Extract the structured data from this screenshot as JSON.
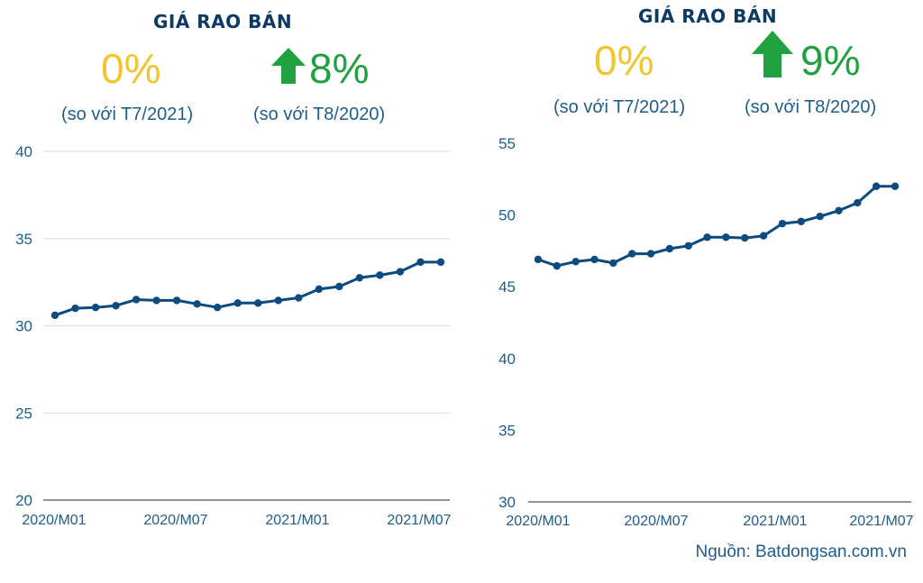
{
  "chart_data": [
    {
      "type": "line",
      "title": "GIÁ RAO BÁN",
      "stats": {
        "mom": {
          "value": "0%",
          "label": "(so với T7/2021)",
          "direction": "flat",
          "color": "#f2c42d"
        },
        "yoy": {
          "value": "8%",
          "label": "(so với T8/2020)",
          "direction": "up",
          "color": "#1fa23f"
        }
      },
      "x": [
        "2020/M01",
        "2020/M02",
        "2020/M03",
        "2020/M04",
        "2020/M05",
        "2020/M06",
        "2020/M07",
        "2020/M08",
        "2020/M09",
        "2020/M10",
        "2020/M11",
        "2020/M12",
        "2021/M01",
        "2021/M02",
        "2021/M03",
        "2021/M04",
        "2021/M05",
        "2021/M06",
        "2021/M07",
        "2021/M08"
      ],
      "values": [
        30.6,
        31.0,
        31.05,
        31.15,
        31.5,
        31.45,
        31.45,
        31.25,
        31.05,
        31.3,
        31.3,
        31.45,
        31.6,
        32.1,
        32.25,
        32.75,
        32.9,
        33.1,
        33.65,
        33.65
      ],
      "xticks": [
        "2020/M01",
        "2020/M07",
        "2021/M01",
        "2021/M07"
      ],
      "ylim": [
        20,
        40
      ],
      "yticks": [
        "20",
        "25",
        "30",
        "35",
        "40"
      ],
      "grid": true,
      "line_color": "#0d4a7e",
      "xlabel": "",
      "ylabel": ""
    },
    {
      "type": "line",
      "title": "GIÁ RAO BÁN",
      "stats": {
        "mom": {
          "value": "0%",
          "label": "(so với T7/2021)",
          "direction": "flat",
          "color": "#f2c42d"
        },
        "yoy": {
          "value": "9%",
          "label": "(so với T8/2020)",
          "direction": "up",
          "color": "#1fa23f"
        }
      },
      "x": [
        "2020/M01",
        "2020/M02",
        "2020/M03",
        "2020/M04",
        "2020/M05",
        "2020/M06",
        "2020/M07",
        "2020/M08",
        "2020/M09",
        "2020/M10",
        "2020/M11",
        "2020/M12",
        "2021/M01",
        "2021/M02",
        "2021/M03",
        "2021/M04",
        "2021/M05",
        "2021/M06",
        "2021/M07",
        "2021/M08"
      ],
      "values": [
        46.9,
        46.45,
        46.75,
        46.9,
        46.65,
        47.3,
        47.3,
        47.65,
        47.85,
        48.45,
        48.45,
        48.4,
        48.55,
        49.4,
        49.55,
        49.9,
        50.3,
        50.85,
        52.0,
        52.0
      ],
      "xticks": [
        "2020/M01",
        "2020/M07",
        "2021/M01",
        "2021/M07"
      ],
      "ylim": [
        30,
        55
      ],
      "yticks": [
        "30",
        "35",
        "40",
        "45",
        "50",
        "55"
      ],
      "grid": false,
      "line_color": "#0d4a7e",
      "xlabel": "",
      "ylabel": ""
    }
  ],
  "source": "Nguồn: Batdongsan.com.vn"
}
